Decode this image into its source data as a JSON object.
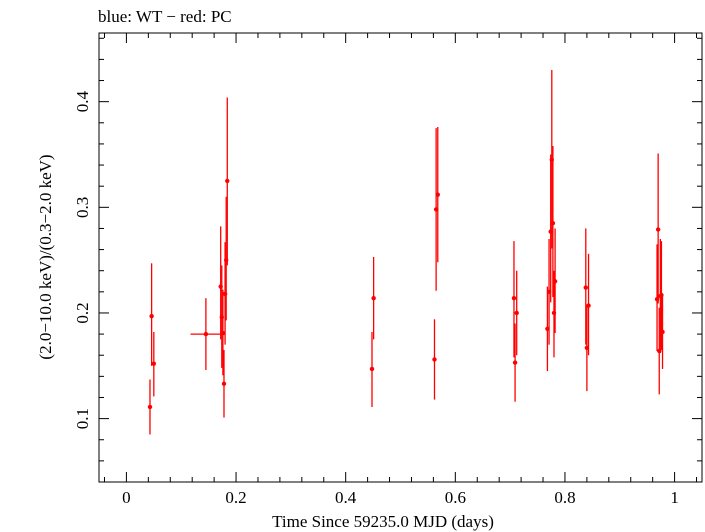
{
  "chart_data": {
    "type": "scatter",
    "title": "blue: WT − red: PC",
    "xlabel": "Time Since 59235.0 MJD (days)",
    "ylabel": "(2.0−10.0 keV)/(0.3−2.0 keV)",
    "xlim": [
      -0.05,
      1.05
    ],
    "ylim": [
      0.04,
      0.465
    ],
    "x_ticks": [
      0,
      0.2,
      0.4,
      0.6,
      0.8,
      1
    ],
    "x_tick_labels": [
      "0",
      "0.2",
      "0.4",
      "0.6",
      "0.8",
      "1"
    ],
    "y_ticks": [
      0.1,
      0.2,
      0.3,
      0.4
    ],
    "y_tick_labels": [
      "0.1",
      "0.2",
      "0.3",
      "0.4"
    ],
    "grid": false,
    "series": [
      {
        "color": "#ff0000",
        "points": [
          {
            "x": 0.043,
            "y": 0.111,
            "ylo": 0.085,
            "yhi": 0.137
          },
          {
            "x": 0.046,
            "y": 0.197,
            "ylo": 0.15,
            "yhi": 0.247
          },
          {
            "x": 0.05,
            "y": 0.152,
            "ylo": 0.121,
            "yhi": 0.182
          },
          {
            "x": 0.145,
            "y": 0.18,
            "ylo": 0.146,
            "yhi": 0.214,
            "xlo": 0.117,
            "xhi": 0.172
          },
          {
            "x": 0.172,
            "y": 0.225,
            "ylo": 0.175,
            "yhi": 0.282
          },
          {
            "x": 0.174,
            "y": 0.196,
            "ylo": 0.148,
            "yhi": 0.245
          },
          {
            "x": 0.176,
            "y": 0.181,
            "ylo": 0.141,
            "yhi": 0.222
          },
          {
            "x": 0.178,
            "y": 0.133,
            "ylo": 0.101,
            "yhi": 0.165
          },
          {
            "x": 0.18,
            "y": 0.218,
            "ylo": 0.17,
            "yhi": 0.267
          },
          {
            "x": 0.182,
            "y": 0.25,
            "ylo": 0.193,
            "yhi": 0.31
          },
          {
            "x": 0.184,
            "y": 0.325,
            "ylo": 0.245,
            "yhi": 0.404
          },
          {
            "x": 0.448,
            "y": 0.147,
            "ylo": 0.111,
            "yhi": 0.182
          },
          {
            "x": 0.451,
            "y": 0.214,
            "ylo": 0.175,
            "yhi": 0.253
          },
          {
            "x": 0.562,
            "y": 0.156,
            "ylo": 0.118,
            "yhi": 0.194
          },
          {
            "x": 0.565,
            "y": 0.298,
            "ylo": 0.221,
            "yhi": 0.375
          },
          {
            "x": 0.568,
            "y": 0.312,
            "ylo": 0.248,
            "yhi": 0.376
          },
          {
            "x": 0.707,
            "y": 0.214,
            "ylo": 0.158,
            "yhi": 0.268
          },
          {
            "x": 0.709,
            "y": 0.153,
            "ylo": 0.116,
            "yhi": 0.19
          },
          {
            "x": 0.712,
            "y": 0.2,
            "ylo": 0.16,
            "yhi": 0.24
          },
          {
            "x": 0.768,
            "y": 0.185,
            "ylo": 0.145,
            "yhi": 0.225
          },
          {
            "x": 0.771,
            "y": 0.22,
            "ylo": 0.17,
            "yhi": 0.27
          },
          {
            "x": 0.774,
            "y": 0.277,
            "ylo": 0.21,
            "yhi": 0.35
          },
          {
            "x": 0.776,
            "y": 0.345,
            "ylo": 0.261,
            "yhi": 0.43
          },
          {
            "x": 0.778,
            "y": 0.285,
            "ylo": 0.215,
            "yhi": 0.358
          },
          {
            "x": 0.78,
            "y": 0.2,
            "ylo": 0.158,
            "yhi": 0.24
          },
          {
            "x": 0.782,
            "y": 0.23,
            "ylo": 0.181,
            "yhi": 0.28
          },
          {
            "x": 0.838,
            "y": 0.224,
            "ylo": 0.17,
            "yhi": 0.28
          },
          {
            "x": 0.84,
            "y": 0.167,
            "ylo": 0.126,
            "yhi": 0.208
          },
          {
            "x": 0.843,
            "y": 0.207,
            "ylo": 0.16,
            "yhi": 0.256
          },
          {
            "x": 0.968,
            "y": 0.213,
            "ylo": 0.164,
            "yhi": 0.265
          },
          {
            "x": 0.97,
            "y": 0.279,
            "ylo": 0.209,
            "yhi": 0.351
          },
          {
            "x": 0.972,
            "y": 0.164,
            "ylo": 0.123,
            "yhi": 0.205
          },
          {
            "x": 0.974,
            "y": 0.216,
            "ylo": 0.162,
            "yhi": 0.27
          },
          {
            "x": 0.976,
            "y": 0.217,
            "ylo": 0.165,
            "yhi": 0.268
          },
          {
            "x": 0.978,
            "y": 0.182,
            "ylo": 0.147,
            "yhi": 0.217
          }
        ]
      }
    ]
  }
}
